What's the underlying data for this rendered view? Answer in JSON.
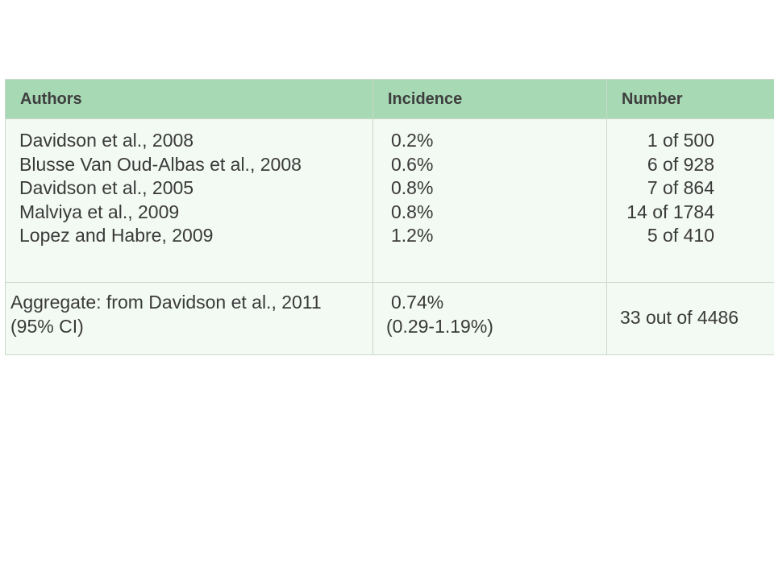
{
  "table": {
    "headers": {
      "authors": "Authors",
      "incidence": "Incidence",
      "number": "Number"
    },
    "studies": [
      {
        "authors": "Davidson et al., 2008",
        "incidence": "0.2%",
        "number": "1 of 500"
      },
      {
        "authors": "Blusse Van Oud-Albas et al., 2008",
        "incidence": "0.6%",
        "number": "6 of 928"
      },
      {
        "authors": "Davidson et al., 2005",
        "incidence": "0.8%",
        "number": "7 of 864"
      },
      {
        "authors": "Malviya et al., 2009",
        "incidence": "0.8%",
        "number": "14 of 1784"
      },
      {
        "authors": "Lopez and Habre, 2009",
        "incidence": "1.2%",
        "number": "5 of 410"
      }
    ],
    "aggregate": {
      "authors_line1": "Aggregate: from Davidson et al., 2011",
      "authors_line2": "(95% CI)",
      "incidence_line1": "0.74%",
      "incidence_line2": "(0.29-1.19%)",
      "number": "33 out of 4486"
    }
  },
  "colors": {
    "header_bg": "#a8d9b5",
    "body_bg": "#f3faf3",
    "border": "#c9d8c9",
    "text": "#3a3a3a"
  }
}
